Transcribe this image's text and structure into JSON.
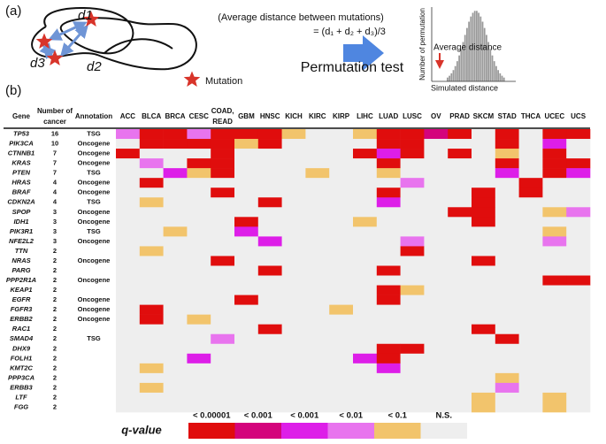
{
  "panel_a": {
    "label": "(a)",
    "distances": [
      "d1",
      "d2",
      "d3"
    ],
    "mutation_legend": "Mutation",
    "formula_caption": "(Average distance between mutations)",
    "formula": "= (d₁ + d₂ + d₃)/3",
    "test_label": "Permutation test",
    "hist_ylabel": "Number of permutation",
    "hist_xlabel": "Simulated distance",
    "hist_annotation": "Average distance"
  },
  "panel_b": {
    "label": "(b)",
    "headers": {
      "gene": "Gene",
      "number": [
        "Number of",
        "cancer"
      ],
      "annotation": "Annotation"
    },
    "columns": [
      [
        "ACC"
      ],
      [
        "BLCA"
      ],
      [
        "BRCA"
      ],
      [
        "CESC"
      ],
      [
        "COAD,",
        "READ"
      ],
      [
        "GBM"
      ],
      [
        "HNSC"
      ],
      [
        "KICH"
      ],
      [
        "KIRC"
      ],
      [
        "KIRP"
      ],
      [
        "LIHC"
      ],
      [
        "LUAD"
      ],
      [
        "LUSC"
      ],
      [
        "OV"
      ],
      [
        "PRAD"
      ],
      [
        "SKCM"
      ],
      [
        "STAD"
      ],
      [
        "THCA"
      ],
      [
        "UCEC"
      ],
      [
        "UCS"
      ]
    ],
    "rows": [
      {
        "gene": "TP53",
        "number": 16,
        "annotation": "TSG",
        "levels": [
          3,
          0,
          0,
          3,
          0,
          0,
          0,
          4,
          5,
          5,
          4,
          0,
          0,
          1,
          0,
          5,
          0,
          5,
          0,
          0
        ]
      },
      {
        "gene": "PIK3CA",
        "number": 10,
        "annotation": "Oncogene",
        "levels": [
          5,
          0,
          0,
          0,
          0,
          4,
          0,
          5,
          5,
          5,
          5,
          0,
          0,
          5,
          5,
          5,
          0,
          5,
          2,
          5
        ]
      },
      {
        "gene": "CTNNB1",
        "number": 7,
        "annotation": "Oncogene",
        "levels": [
          0,
          5,
          5,
          5,
          0,
          5,
          5,
          5,
          5,
          5,
          0,
          2,
          0,
          5,
          0,
          5,
          4,
          5,
          0,
          5
        ]
      },
      {
        "gene": "KRAS",
        "number": 7,
        "annotation": "Oncogene",
        "levels": [
          5,
          3,
          5,
          0,
          0,
          5,
          5,
          5,
          5,
          5,
          5,
          0,
          5,
          5,
          5,
          5,
          0,
          5,
          0,
          0
        ]
      },
      {
        "gene": "PTEN",
        "number": 7,
        "annotation": "TSG",
        "levels": [
          5,
          5,
          2,
          4,
          0,
          5,
          5,
          5,
          4,
          5,
          5,
          4,
          5,
          5,
          5,
          5,
          2,
          5,
          0,
          2
        ]
      },
      {
        "gene": "HRAS",
        "number": 4,
        "annotation": "Oncogene",
        "levels": [
          5,
          0,
          5,
          5,
          5,
          5,
          5,
          5,
          5,
          5,
          5,
          5,
          3,
          5,
          5,
          5,
          5,
          0,
          5,
          5
        ]
      },
      {
        "gene": "BRAF",
        "number": 4,
        "annotation": "Oncogene",
        "levels": [
          5,
          5,
          5,
          5,
          0,
          5,
          5,
          5,
          5,
          5,
          5,
          0,
          5,
          5,
          5,
          0,
          5,
          0,
          5,
          5
        ]
      },
      {
        "gene": "CDKN2A",
        "number": 4,
        "annotation": "TSG",
        "levels": [
          5,
          4,
          5,
          5,
          5,
          5,
          0,
          5,
          5,
          5,
          5,
          2,
          5,
          5,
          5,
          0,
          5,
          5,
          5,
          5
        ]
      },
      {
        "gene": "SPOP",
        "number": 3,
        "annotation": "Oncogene",
        "levels": [
          5,
          5,
          5,
          5,
          5,
          5,
          5,
          5,
          5,
          5,
          5,
          5,
          5,
          5,
          0,
          0,
          5,
          5,
          4,
          3
        ]
      },
      {
        "gene": "IDH1",
        "number": 3,
        "annotation": "Oncogene",
        "levels": [
          5,
          5,
          5,
          5,
          5,
          0,
          5,
          5,
          5,
          5,
          4,
          5,
          5,
          5,
          5,
          0,
          5,
          5,
          5,
          5
        ]
      },
      {
        "gene": "PIK3R1",
        "number": 3,
        "annotation": "TSG",
        "levels": [
          5,
          5,
          4,
          5,
          5,
          2,
          5,
          5,
          5,
          5,
          5,
          5,
          5,
          5,
          5,
          5,
          5,
          5,
          4,
          5
        ]
      },
      {
        "gene": "NFE2L2",
        "number": 3,
        "annotation": "Oncogene",
        "levels": [
          5,
          5,
          5,
          5,
          5,
          5,
          2,
          5,
          5,
          5,
          5,
          5,
          3,
          5,
          5,
          5,
          5,
          5,
          3,
          5
        ]
      },
      {
        "gene": "TTN",
        "number": 2,
        "annotation": "",
        "levels": [
          5,
          4,
          5,
          5,
          5,
          5,
          5,
          5,
          5,
          5,
          5,
          5,
          0,
          5,
          5,
          5,
          5,
          5,
          5,
          5
        ]
      },
      {
        "gene": "NRAS",
        "number": 2,
        "annotation": "Oncogene",
        "levels": [
          5,
          5,
          5,
          5,
          0,
          5,
          5,
          5,
          5,
          5,
          5,
          5,
          5,
          5,
          5,
          0,
          5,
          5,
          5,
          5
        ]
      },
      {
        "gene": "PARG",
        "number": 2,
        "annotation": "",
        "levels": [
          5,
          5,
          5,
          5,
          5,
          5,
          0,
          5,
          5,
          5,
          5,
          0,
          5,
          5,
          5,
          5,
          5,
          5,
          5,
          5
        ]
      },
      {
        "gene": "PPP2R1A",
        "number": 2,
        "annotation": "Oncogene",
        "levels": [
          5,
          5,
          5,
          5,
          5,
          5,
          5,
          5,
          5,
          5,
          5,
          5,
          5,
          5,
          5,
          5,
          5,
          5,
          0,
          0
        ]
      },
      {
        "gene": "KEAP1",
        "number": 2,
        "annotation": "",
        "levels": [
          5,
          5,
          5,
          5,
          5,
          5,
          5,
          5,
          5,
          5,
          5,
          0,
          4,
          5,
          5,
          5,
          5,
          5,
          5,
          5
        ]
      },
      {
        "gene": "EGFR",
        "number": 2,
        "annotation": "Oncogene",
        "levels": [
          5,
          5,
          5,
          5,
          5,
          0,
          5,
          5,
          5,
          5,
          5,
          0,
          5,
          5,
          5,
          5,
          5,
          5,
          5,
          5
        ]
      },
      {
        "gene": "FGFR3",
        "number": 2,
        "annotation": "Oncogene",
        "levels": [
          5,
          0,
          5,
          5,
          5,
          5,
          5,
          5,
          5,
          4,
          5,
          5,
          5,
          5,
          5,
          5,
          5,
          5,
          5,
          5
        ]
      },
      {
        "gene": "ERBB2",
        "number": 2,
        "annotation": "Oncogene",
        "levels": [
          5,
          0,
          5,
          4,
          5,
          5,
          5,
          5,
          5,
          5,
          5,
          5,
          5,
          5,
          5,
          5,
          5,
          5,
          5,
          5
        ]
      },
      {
        "gene": "RAC1",
        "number": 2,
        "annotation": "",
        "levels": [
          5,
          5,
          5,
          5,
          5,
          5,
          0,
          5,
          5,
          5,
          5,
          5,
          5,
          5,
          5,
          0,
          5,
          5,
          5,
          5
        ]
      },
      {
        "gene": "SMAD4",
        "number": 2,
        "annotation": "TSG",
        "levels": [
          5,
          5,
          5,
          5,
          3,
          5,
          5,
          5,
          5,
          5,
          5,
          5,
          5,
          5,
          5,
          5,
          0,
          5,
          5,
          5
        ]
      },
      {
        "gene": "DHX9",
        "number": 2,
        "annotation": "",
        "levels": [
          5,
          5,
          5,
          5,
          5,
          5,
          5,
          5,
          5,
          5,
          5,
          0,
          0,
          5,
          5,
          5,
          5,
          5,
          5,
          5
        ]
      },
      {
        "gene": "FOLH1",
        "number": 2,
        "annotation": "",
        "levels": [
          5,
          5,
          5,
          2,
          5,
          5,
          5,
          5,
          5,
          5,
          2,
          0,
          5,
          5,
          5,
          5,
          5,
          5,
          5,
          5
        ]
      },
      {
        "gene": "KMT2C",
        "number": 2,
        "annotation": "",
        "levels": [
          5,
          4,
          5,
          5,
          5,
          5,
          5,
          5,
          5,
          5,
          5,
          2,
          5,
          5,
          5,
          5,
          5,
          5,
          5,
          5
        ]
      },
      {
        "gene": "PPP3CA",
        "number": 2,
        "annotation": "",
        "levels": [
          5,
          5,
          5,
          5,
          5,
          5,
          5,
          5,
          5,
          5,
          5,
          5,
          5,
          5,
          5,
          5,
          4,
          5,
          5,
          5
        ]
      },
      {
        "gene": "ERBB3",
        "number": 2,
        "annotation": "",
        "levels": [
          5,
          4,
          5,
          5,
          5,
          5,
          5,
          5,
          5,
          5,
          5,
          5,
          5,
          5,
          5,
          5,
          3,
          5,
          5,
          5
        ]
      },
      {
        "gene": "LTF",
        "number": 2,
        "annotation": "",
        "levels": [
          5,
          5,
          5,
          5,
          5,
          5,
          5,
          5,
          5,
          5,
          5,
          5,
          5,
          5,
          5,
          4,
          5,
          5,
          4,
          5
        ]
      },
      {
        "gene": "FGG",
        "number": 2,
        "annotation": "",
        "levels": [
          5,
          5,
          5,
          5,
          5,
          5,
          5,
          5,
          5,
          5,
          5,
          5,
          5,
          5,
          5,
          4,
          5,
          5,
          4,
          5
        ]
      }
    ],
    "legend": {
      "title": "q-value",
      "levels": [
        {
          "label": "< 0.00001",
          "color": "#e00d0d"
        },
        {
          "label": "< 0.001",
          "color": "#d4047c"
        },
        {
          "label": "< 0.001",
          "color": "#dd1ee8"
        },
        {
          "label": "< 0.01",
          "color": "#e874ee"
        },
        {
          "label": "< 0.1",
          "color": "#f2c46c"
        },
        {
          "label": "N.S.",
          "color": "#eeeeee"
        }
      ]
    }
  }
}
